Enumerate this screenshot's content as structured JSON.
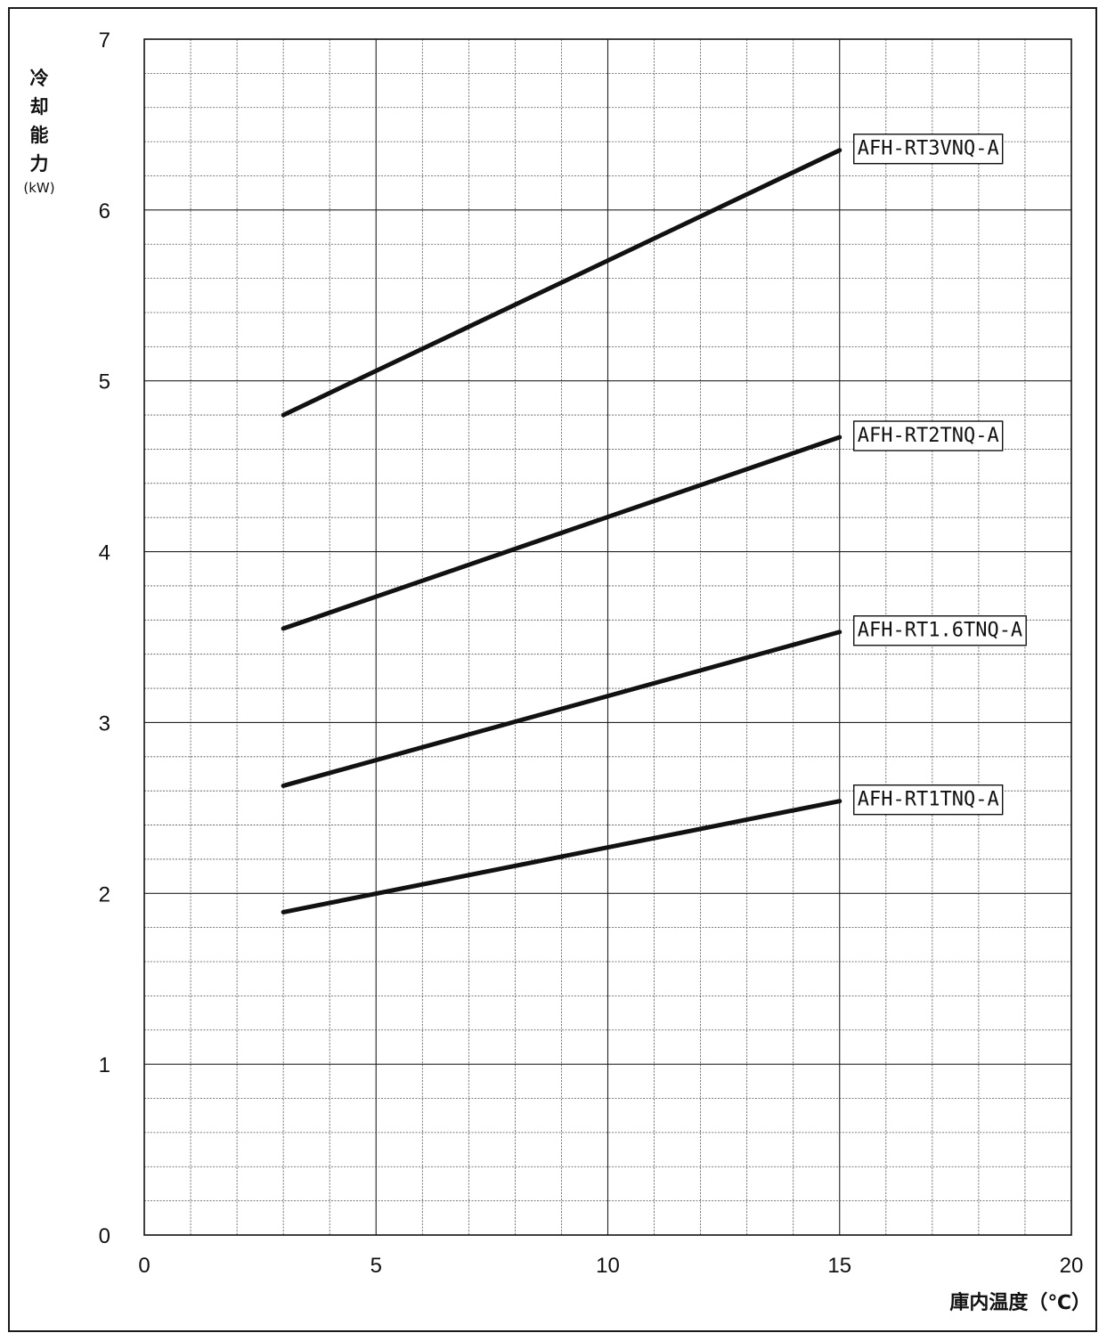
{
  "chart_data": {
    "type": "line",
    "ylabel_chars": [
      "冷",
      "却",
      "能",
      "力"
    ],
    "ylabel_unit": "(kW)",
    "xlabel": "庫内温度（℃）",
    "xlim": [
      0,
      20
    ],
    "ylim": [
      0,
      7
    ],
    "x_ticks": [
      "0",
      "5",
      "10",
      "15",
      "20"
    ],
    "y_ticks": [
      "0",
      "1",
      "2",
      "3",
      "4",
      "5",
      "6",
      "7"
    ],
    "grid": true,
    "x": [
      3,
      15
    ],
    "series": [
      {
        "name": "AFH-RT3VNQ-A",
        "values": [
          4.8,
          6.35
        ]
      },
      {
        "name": "AFH-RT2TNQ-A",
        "values": [
          3.55,
          4.67
        ]
      },
      {
        "name": "AFH-RT1.6TNQ-A",
        "values": [
          2.63,
          3.53
        ]
      },
      {
        "name": "AFH-RT1TNQ-A",
        "values": [
          1.89,
          2.54
        ]
      }
    ]
  }
}
